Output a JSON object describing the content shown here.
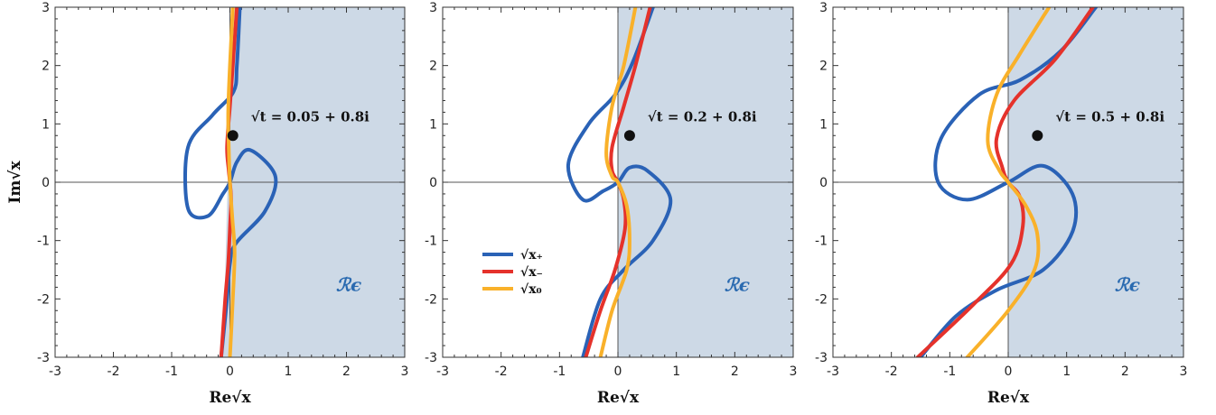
{
  "colors": {
    "x_plus": "#2a62b6",
    "x_minus": "#e5322b",
    "x_zero": "#f9b12a",
    "region_fill": "#cdd9e6",
    "region_label": "#2a6ab0"
  },
  "axes": {
    "xlabel": "Re√x",
    "ylabel": "Im√x",
    "xlim": [
      -3,
      3
    ],
    "ylim": [
      -3,
      3
    ],
    "ticks": [
      "-3",
      "-2",
      "-1",
      "0",
      "1",
      "2",
      "3"
    ]
  },
  "legend": {
    "entries": [
      "√x₊",
      "√x₋",
      "√x₀"
    ]
  },
  "chart_data": [
    {
      "type": "line",
      "title": "",
      "xlabel": "Re√x",
      "ylabel": "Im√x",
      "xlim": [
        -3,
        3
      ],
      "ylim": [
        -3,
        3
      ],
      "grid": false,
      "point": {
        "x": 0.05,
        "y": 0.8,
        "label": "√t = 0.05 + 0.8i"
      },
      "region_label": "ℛϵ",
      "region_boundary": [
        [
          0.04,
          3
        ],
        [
          -0.12,
          -3
        ]
      ],
      "series": [
        {
          "key": "x_plus",
          "points": [
            [
              0.17,
              3
            ],
            [
              0.12,
              2
            ],
            [
              0.06,
              1.55
            ],
            [
              -0.3,
              1.15
            ],
            [
              -0.72,
              0.6
            ],
            [
              -0.72,
              -0.45
            ],
            [
              -0.38,
              -0.58
            ],
            [
              -0.12,
              -0.2
            ],
            [
              0,
              0
            ],
            [
              0.12,
              0.35
            ],
            [
              0.35,
              0.55
            ],
            [
              0.78,
              0.1
            ],
            [
              0.6,
              -0.5
            ],
            [
              0.1,
              -1.05
            ],
            [
              0,
              -1.4
            ],
            [
              -0.05,
              -2
            ],
            [
              -0.15,
              -3
            ]
          ]
        },
        {
          "key": "x_minus",
          "points": [
            [
              0.12,
              3
            ],
            [
              0.05,
              2
            ],
            [
              0,
              1.3
            ],
            [
              -0.05,
              0.6
            ],
            [
              -0.02,
              0.2
            ],
            [
              0,
              0
            ],
            [
              0.02,
              -0.3
            ],
            [
              0,
              -0.8
            ],
            [
              -0.03,
              -1.4
            ],
            [
              -0.08,
              -2
            ],
            [
              -0.15,
              -3
            ]
          ]
        },
        {
          "key": "x_zero",
          "points": [
            [
              0.05,
              3
            ],
            [
              0,
              2
            ],
            [
              -0.03,
              1.2
            ],
            [
              -0.02,
              0.6
            ],
            [
              0,
              0
            ],
            [
              0.04,
              -0.6
            ],
            [
              0.08,
              -1.2
            ],
            [
              0.05,
              -2
            ],
            [
              0,
              -3
            ]
          ]
        }
      ]
    },
    {
      "type": "line",
      "title": "",
      "xlabel": "Re√x",
      "ylabel": "Im√x",
      "xlim": [
        -3,
        3
      ],
      "ylim": [
        -3,
        3
      ],
      "grid": false,
      "point": {
        "x": 0.2,
        "y": 0.8,
        "label": "√t = 0.2 + 0.8i"
      },
      "region_label": "ℛϵ",
      "region_boundary": [
        [
          0,
          3
        ],
        [
          0,
          -3
        ]
      ],
      "series": [
        {
          "key": "x_plus",
          "points": [
            [
              0.6,
              3
            ],
            [
              0.25,
              2.05
            ],
            [
              -0.05,
              1.5
            ],
            [
              -0.5,
              1
            ],
            [
              -0.85,
              0.3
            ],
            [
              -0.6,
              -0.3
            ],
            [
              -0.25,
              -0.15
            ],
            [
              0,
              0
            ],
            [
              0.2,
              0.25
            ],
            [
              0.5,
              0.2
            ],
            [
              0.9,
              -0.3
            ],
            [
              0.6,
              -1
            ],
            [
              0.1,
              -1.5
            ],
            [
              -0.3,
              -2
            ],
            [
              -0.6,
              -3
            ]
          ]
        },
        {
          "key": "x_minus",
          "points": [
            [
              0.55,
              3
            ],
            [
              0.3,
              2
            ],
            [
              0.1,
              1.3
            ],
            [
              -0.1,
              0.6
            ],
            [
              -0.1,
              0.2
            ],
            [
              0,
              0
            ],
            [
              0.1,
              -0.3
            ],
            [
              0.12,
              -0.8
            ],
            [
              -0.05,
              -1.5
            ],
            [
              -0.3,
              -2.2
            ],
            [
              -0.55,
              -3
            ]
          ]
        },
        {
          "key": "x_zero",
          "points": [
            [
              0.3,
              3
            ],
            [
              0.1,
              2
            ],
            [
              -0.1,
              1.3
            ],
            [
              -0.2,
              0.5
            ],
            [
              -0.1,
              0.1
            ],
            [
              0,
              0
            ],
            [
              0.15,
              -0.4
            ],
            [
              0.2,
              -1.0
            ],
            [
              0.15,
              -1.5
            ],
            [
              -0.1,
              -2.2
            ],
            [
              -0.3,
              -3
            ]
          ]
        }
      ]
    },
    {
      "type": "line",
      "title": "",
      "xlabel": "Re√x",
      "ylabel": "Im√x",
      "xlim": [
        -3,
        3
      ],
      "ylim": [
        -3,
        3
      ],
      "grid": false,
      "point": {
        "x": 0.5,
        "y": 0.8,
        "label": "√t = 0.5 + 0.8i"
      },
      "region_label": "ℛϵ",
      "region_boundary": [
        [
          0,
          3
        ],
        [
          0,
          -3
        ]
      ],
      "series": [
        {
          "key": "x_plus",
          "points": [
            [
              1.5,
              3
            ],
            [
              0.9,
              2.25
            ],
            [
              0.2,
              1.75
            ],
            [
              -0.5,
              1.5
            ],
            [
              -1.15,
              0.75
            ],
            [
              -1.2,
              0
            ],
            [
              -0.7,
              -0.3
            ],
            [
              0,
              0
            ],
            [
              0.6,
              0.28
            ],
            [
              1.1,
              -0.2
            ],
            [
              1.1,
              -0.85
            ],
            [
              0.6,
              -1.5
            ],
            [
              -0.2,
              -1.85
            ],
            [
              -0.9,
              -2.3
            ],
            [
              -1.5,
              -3
            ]
          ]
        },
        {
          "key": "x_minus",
          "points": [
            [
              1.45,
              3
            ],
            [
              0.8,
              2.1
            ],
            [
              0.1,
              1.4
            ],
            [
              -0.2,
              0.75
            ],
            [
              -0.1,
              0.25
            ],
            [
              0,
              0
            ],
            [
              0.2,
              -0.25
            ],
            [
              0.25,
              -0.75
            ],
            [
              0.05,
              -1.4
            ],
            [
              -0.6,
              -2.1
            ],
            [
              -1.55,
              -3
            ]
          ]
        },
        {
          "key": "x_zero",
          "points": [
            [
              0.7,
              3
            ],
            [
              0.2,
              2.2
            ],
            [
              -0.2,
              1.5
            ],
            [
              -0.35,
              0.7
            ],
            [
              -0.15,
              0.2
            ],
            [
              0,
              0
            ],
            [
              0.3,
              -0.4
            ],
            [
              0.5,
              -0.9
            ],
            [
              0.45,
              -1.5
            ],
            [
              0,
              -2.2
            ],
            [
              -0.7,
              -3
            ]
          ]
        }
      ]
    }
  ]
}
